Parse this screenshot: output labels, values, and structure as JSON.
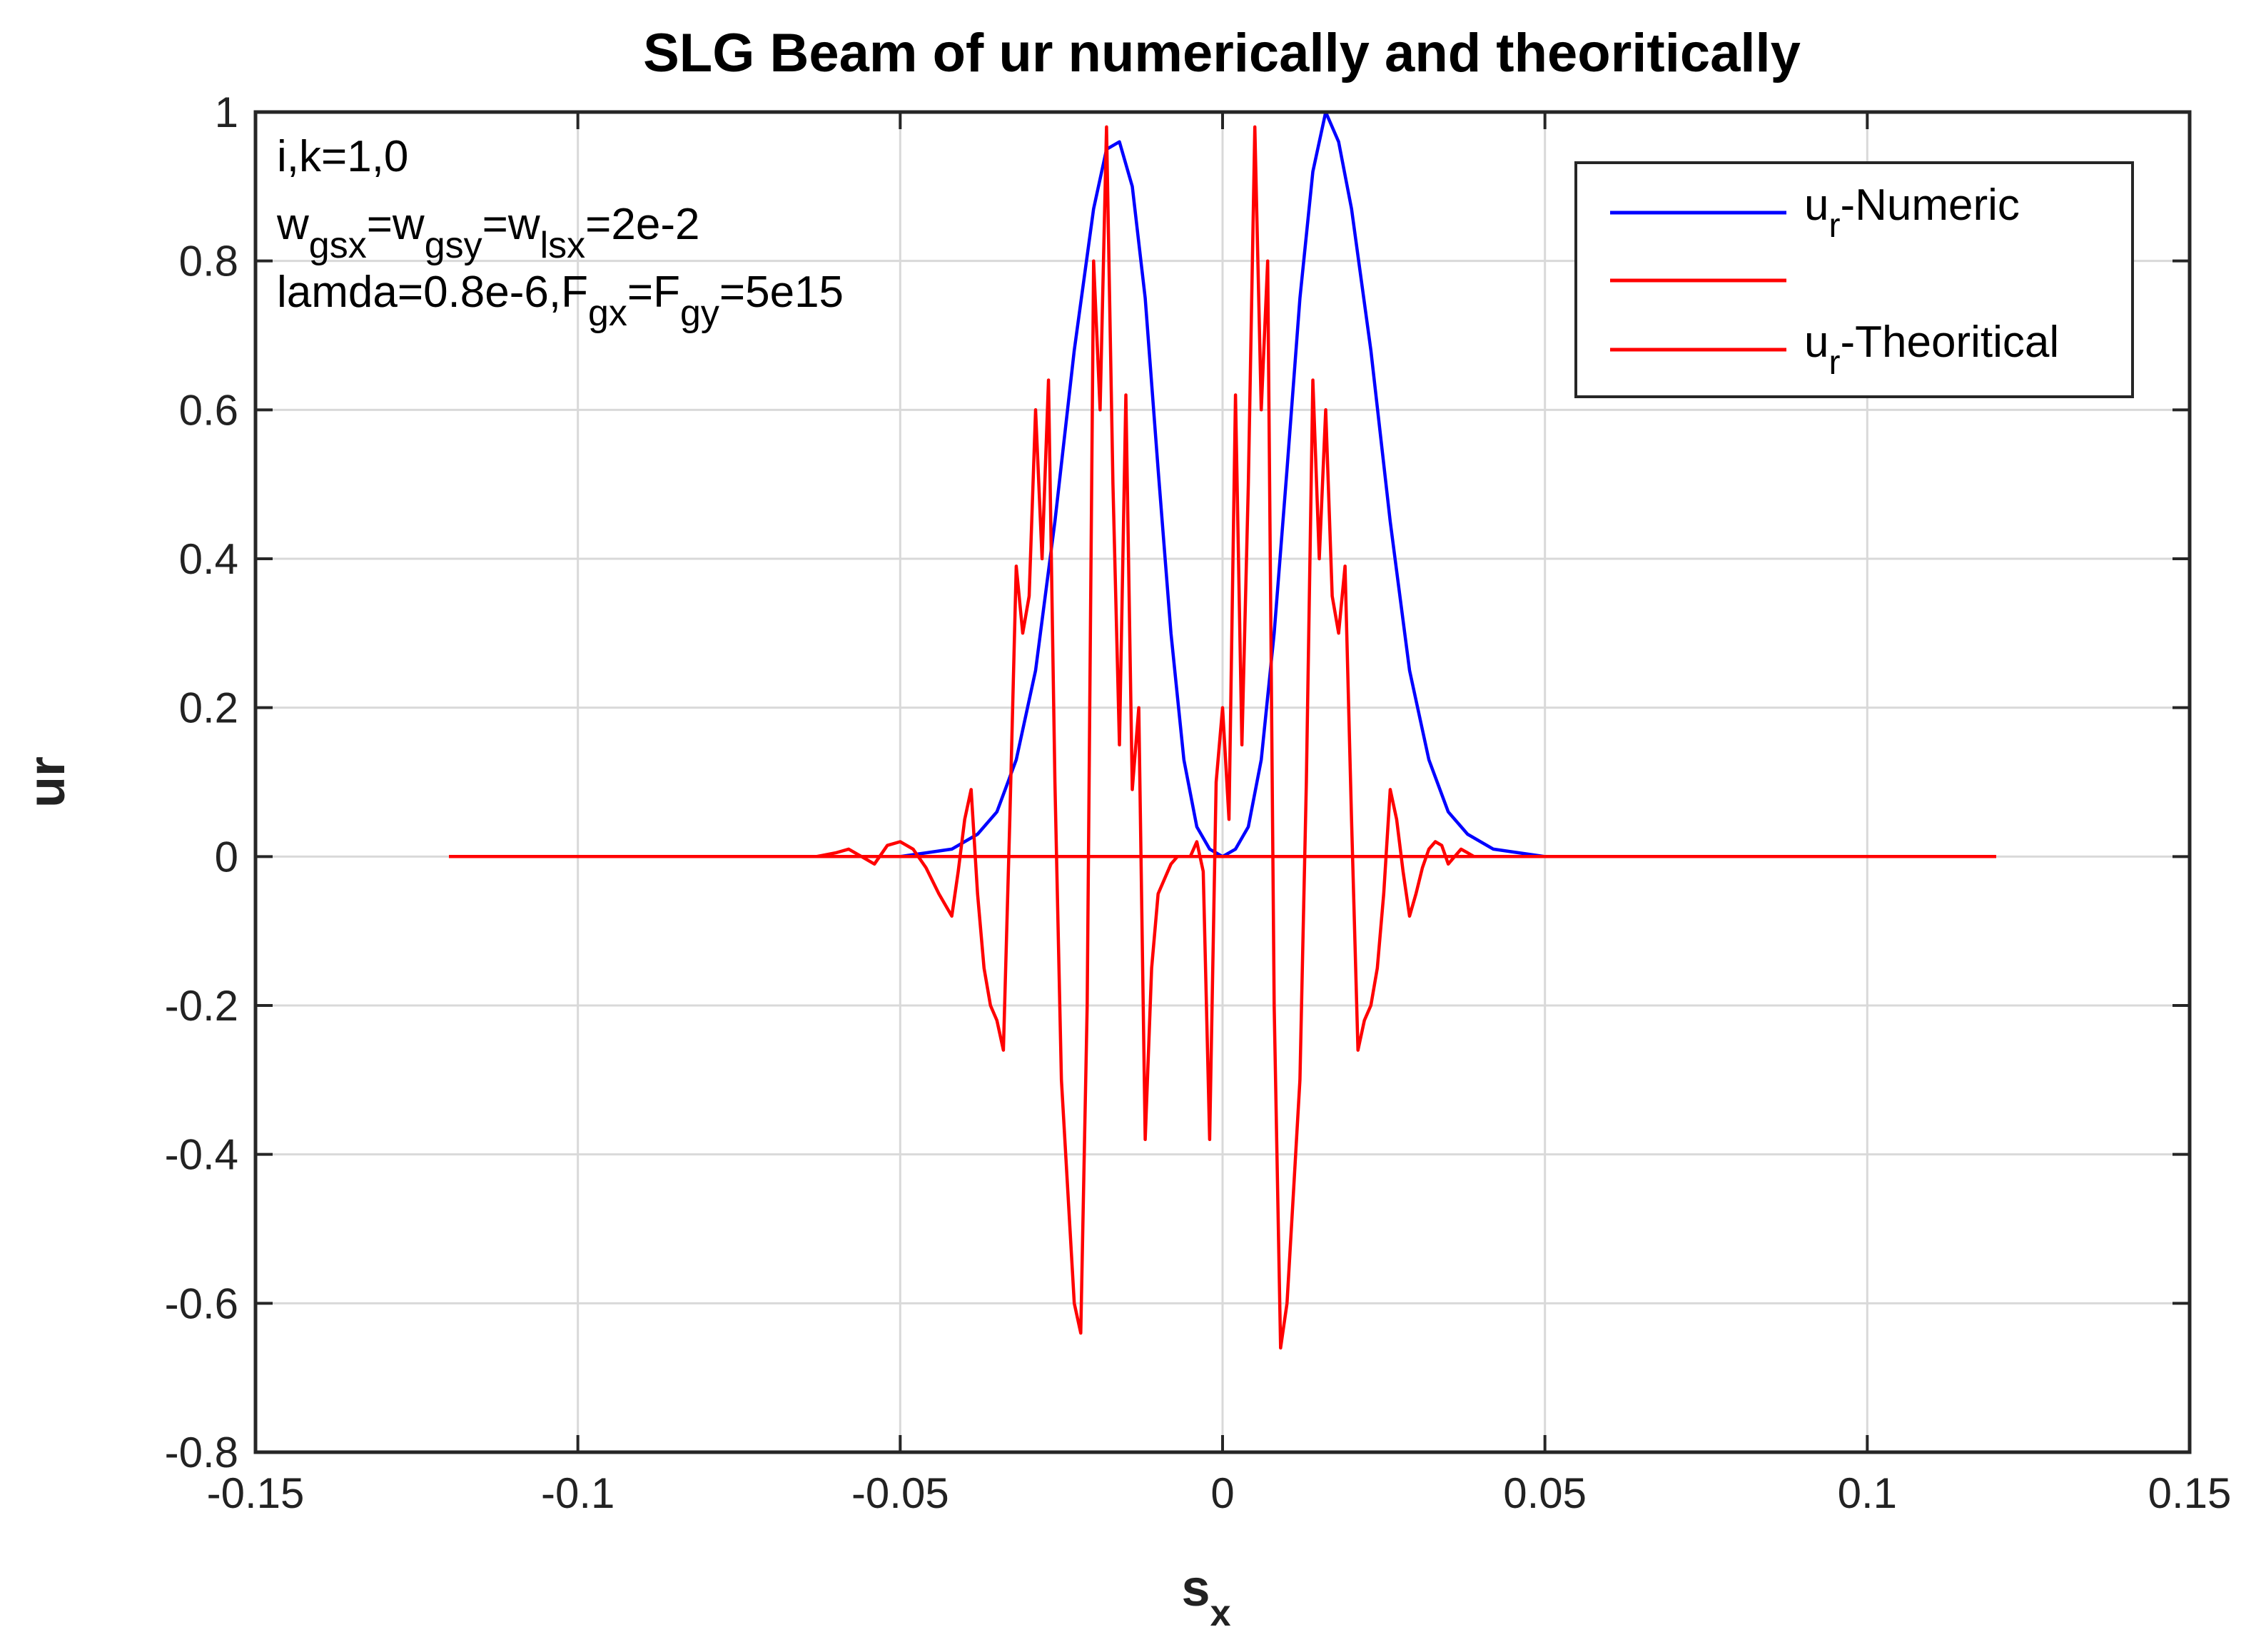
{
  "chart_data": {
    "type": "line",
    "title": "SLG Beam of ur numerically and theoritically",
    "xlabel": "s",
    "xlabel_subscript": "x",
    "ylabel": "ur",
    "xlim": [
      -0.15,
      0.15
    ],
    "ylim": [
      -0.8,
      1
    ],
    "xticks": [
      -0.15,
      -0.1,
      -0.05,
      0,
      0.05,
      0.1,
      0.15
    ],
    "xtick_labels": [
      "-0.15",
      "-0.1",
      "-0.05",
      "0",
      "0.05",
      "0.1",
      "0.15"
    ],
    "yticks": [
      -0.8,
      -0.6,
      -0.4,
      -0.2,
      0,
      0.2,
      0.4,
      0.6,
      0.8,
      1
    ],
    "ytick_labels": [
      "-0.8",
      "-0.6",
      "-0.4",
      "-0.2",
      "0",
      "0.2",
      "0.4",
      "0.6",
      "0.8",
      "1"
    ],
    "grid": true,
    "legend_position": "top-right",
    "annotations": [
      {
        "parts": [
          {
            "t": "i,k=1,0"
          }
        ]
      },
      {
        "parts": [
          {
            "t": "w"
          },
          {
            "t": "gsx",
            "sub": true
          },
          {
            "t": "=w"
          },
          {
            "t": "gsy",
            "sub": true
          },
          {
            "t": "=w"
          },
          {
            "t": "lsx",
            "sub": true
          },
          {
            "t": "=2e-2"
          }
        ]
      },
      {
        "parts": [
          {
            "t": "lamda=0.8e-6,F"
          },
          {
            "t": "gx",
            "sub": true
          },
          {
            "t": "=F"
          },
          {
            "t": "gy",
            "sub": true
          },
          {
            "t": "=5e15"
          }
        ]
      }
    ],
    "series": [
      {
        "name": "u_r-Numeric",
        "legend_main": "u",
        "legend_sub": "r",
        "legend_rest": "-Numeric",
        "color": "#0000ff",
        "x": [
          -0.05,
          -0.046,
          -0.042,
          -0.038,
          -0.035,
          -0.032,
          -0.029,
          -0.026,
          -0.023,
          -0.02,
          -0.018,
          -0.016,
          -0.014,
          -0.012,
          -0.01,
          -0.008,
          -0.006,
          -0.004,
          -0.002,
          0,
          0.002,
          0.004,
          0.006,
          0.008,
          0.01,
          0.012,
          0.014,
          0.016,
          0.018,
          0.02,
          0.023,
          0.026,
          0.029,
          0.032,
          0.035,
          0.038,
          0.042,
          0.046,
          0.05
        ],
        "y": [
          0,
          0.005,
          0.01,
          0.03,
          0.06,
          0.13,
          0.25,
          0.45,
          0.68,
          0.87,
          0.95,
          0.96,
          0.9,
          0.75,
          0.52,
          0.3,
          0.13,
          0.04,
          0.01,
          0,
          0.01,
          0.04,
          0.13,
          0.3,
          0.52,
          0.75,
          0.92,
          1.0,
          0.96,
          0.87,
          0.68,
          0.45,
          0.25,
          0.13,
          0.06,
          0.03,
          0.01,
          0.005,
          0
        ]
      },
      {
        "name": "",
        "legend_main": "",
        "legend_sub": "",
        "legend_rest": "",
        "color": "#ff0000",
        "x": [
          -0.12,
          0.12
        ],
        "y": [
          0,
          0
        ]
      },
      {
        "name": "u_r-Theoritical",
        "legend_main": "u",
        "legend_sub": "r",
        "legend_rest": "-Theoritical",
        "color": "#ff0000",
        "x": [
          -0.063,
          -0.06,
          -0.058,
          -0.056,
          -0.054,
          -0.052,
          -0.05,
          -0.048,
          -0.046,
          -0.044,
          -0.042,
          -0.041,
          -0.04,
          -0.039,
          -0.038,
          -0.037,
          -0.036,
          -0.035,
          -0.034,
          -0.033,
          -0.032,
          -0.031,
          -0.03,
          -0.029,
          -0.028,
          -0.027,
          -0.026,
          -0.025,
          -0.024,
          -0.023,
          -0.022,
          -0.021,
          -0.02,
          -0.019,
          -0.018,
          -0.017,
          -0.016,
          -0.015,
          -0.014,
          -0.013,
          -0.012,
          -0.011,
          -0.01,
          -0.009,
          -0.008,
          -0.007,
          -0.006,
          -0.005,
          -0.004,
          -0.003,
          -0.002,
          -0.001,
          0,
          0.001,
          0.002,
          0.003,
          0.004,
          0.005,
          0.006,
          0.007,
          0.008,
          0.009,
          0.01,
          0.011,
          0.012,
          0.013,
          0.014,
          0.015,
          0.016,
          0.017,
          0.018,
          0.019,
          0.02,
          0.021,
          0.022,
          0.023,
          0.024,
          0.025,
          0.026,
          0.027,
          0.028,
          0.029,
          0.03,
          0.031,
          0.032,
          0.033,
          0.034,
          0.035,
          0.036,
          0.037,
          0.038,
          0.039,
          0.04,
          0.041,
          0.042,
          0.044,
          0.046,
          0.048,
          0.05,
          0.052,
          0.054,
          0.056,
          0.058,
          0.06,
          0.063
        ],
        "y": [
          0,
          0.005,
          0.01,
          0,
          -0.01,
          0.015,
          0.02,
          0.01,
          -0.015,
          -0.05,
          -0.08,
          -0.02,
          0.05,
          0.09,
          -0.05,
          -0.15,
          -0.2,
          -0.22,
          -0.26,
          0.05,
          0.39,
          0.3,
          0.35,
          0.6,
          0.4,
          0.64,
          0.1,
          -0.3,
          -0.45,
          -0.6,
          -0.64,
          -0.2,
          0.8,
          0.6,
          0.98,
          0.5,
          0.15,
          0.62,
          0.09,
          0.2,
          -0.38,
          -0.15,
          -0.05,
          -0.03,
          -0.01,
          0.0,
          0,
          0,
          0.02,
          -0.02,
          -0.38,
          0.1,
          0.2,
          0.05,
          0.62,
          0.15,
          0.5,
          0.98,
          0.6,
          0.8,
          -0.2,
          -0.66,
          -0.6,
          -0.45,
          -0.3,
          0.1,
          0.64,
          0.4,
          0.6,
          0.35,
          0.3,
          0.39,
          0.05,
          -0.26,
          -0.22,
          -0.2,
          -0.15,
          -0.05,
          0.09,
          0.05,
          -0.02,
          -0.08,
          -0.05,
          -0.015,
          0.01,
          0.02,
          0.015,
          -0.01,
          0,
          0.01,
          0.005,
          0,
          0,
          0,
          0,
          0,
          0,
          0,
          0,
          0,
          0,
          0,
          0,
          0,
          0
        ]
      }
    ]
  }
}
